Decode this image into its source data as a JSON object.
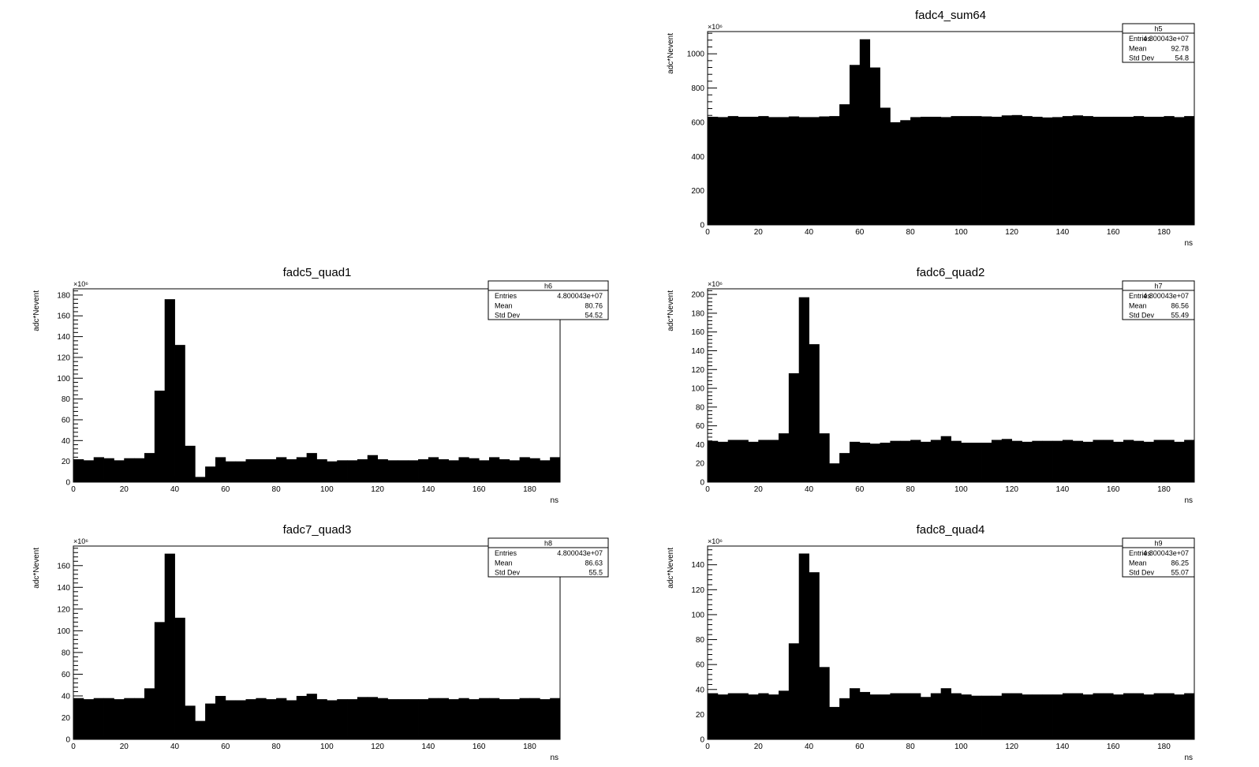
{
  "chart_data": [
    {
      "type": "bar",
      "title": "fadc4_sum64",
      "xlabel": "ns",
      "ylabel": "adc*Nevent",
      "y_multiplier": "×10⁶",
      "xlim": [
        0,
        192
      ],
      "ylim": [
        0,
        1130
      ],
      "xticks": [
        0,
        20,
        40,
        60,
        80,
        100,
        120,
        140,
        160,
        180
      ],
      "yticks": [
        0,
        200,
        400,
        600,
        800,
        1000
      ],
      "bin_width": 4,
      "values": [
        632,
        630,
        636,
        632,
        632,
        636,
        630,
        630,
        634,
        630,
        630,
        634,
        636,
        705,
        935,
        1085,
        920,
        685,
        600,
        612,
        630,
        632,
        632,
        630,
        636,
        636,
        636,
        634,
        632,
        640,
        642,
        636,
        632,
        628,
        630,
        636,
        640,
        636,
        632,
        632,
        632,
        632,
        636,
        632,
        632,
        636,
        630,
        636
      ],
      "stats": {
        "name": "h5",
        "rows": [
          [
            "Entries",
            "4.800043e+07"
          ],
          [
            "Mean",
            "92.78"
          ],
          [
            "Std Dev",
            "54.8"
          ]
        ]
      }
    },
    {
      "type": "bar",
      "title": "fadc5_quad1",
      "xlabel": "ns",
      "ylabel": "adc*Nevent",
      "y_multiplier": "×10⁶",
      "xlim": [
        0,
        192
      ],
      "ylim": [
        0,
        186
      ],
      "xticks": [
        0,
        20,
        40,
        60,
        80,
        100,
        120,
        140,
        160,
        180
      ],
      "yticks": [
        0,
        20,
        40,
        60,
        80,
        100,
        120,
        140,
        160,
        180
      ],
      "bin_width": 4,
      "values": [
        22,
        21,
        24,
        23,
        21,
        23,
        23,
        28,
        88,
        176,
        132,
        35,
        5,
        15,
        24,
        20,
        20,
        22,
        22,
        22,
        24,
        22,
        24,
        28,
        22,
        20,
        21,
        21,
        22,
        26,
        22,
        21,
        21,
        21,
        22,
        24,
        22,
        21,
        24,
        23,
        21,
        24,
        22,
        21,
        24,
        23,
        21,
        24
      ],
      "stats": {
        "name": "h6",
        "rows": [
          [
            "Entries",
            "4.800043e+07"
          ],
          [
            "Mean",
            "80.76"
          ],
          [
            "Std Dev",
            "54.52"
          ]
        ]
      }
    },
    {
      "type": "bar",
      "title": "fadc6_quad2",
      "xlabel": "ns",
      "ylabel": "adc*Nevent",
      "y_multiplier": "×10⁶",
      "xlim": [
        0,
        192
      ],
      "ylim": [
        0,
        206
      ],
      "xticks": [
        0,
        20,
        40,
        60,
        80,
        100,
        120,
        140,
        160,
        180
      ],
      "yticks": [
        0,
        20,
        40,
        60,
        80,
        100,
        120,
        140,
        160,
        180,
        200
      ],
      "bin_width": 4,
      "values": [
        44,
        43,
        45,
        45,
        43,
        45,
        45,
        52,
        116,
        197,
        147,
        52,
        20,
        31,
        43,
        42,
        41,
        42,
        44,
        44,
        45,
        43,
        45,
        49,
        44,
        42,
        42,
        42,
        45,
        46,
        44,
        43,
        44,
        44,
        44,
        45,
        44,
        43,
        45,
        45,
        43,
        45,
        44,
        43,
        45,
        45,
        43,
        45
      ],
      "stats": {
        "name": "h7",
        "rows": [
          [
            "Entries",
            "4.800043e+07"
          ],
          [
            "Mean",
            "86.56"
          ],
          [
            "Std Dev",
            "55.49"
          ]
        ]
      }
    },
    {
      "type": "bar",
      "title": "fadc7_quad3",
      "xlabel": "ns",
      "ylabel": "adc*Nevent",
      "y_multiplier": "×10⁶",
      "xlim": [
        0,
        192
      ],
      "ylim": [
        0,
        178
      ],
      "xticks": [
        0,
        20,
        40,
        60,
        80,
        100,
        120,
        140,
        160,
        180
      ],
      "yticks": [
        0,
        20,
        40,
        60,
        80,
        100,
        120,
        140,
        160
      ],
      "bin_width": 4,
      "values": [
        38,
        37,
        38,
        38,
        37,
        38,
        38,
        47,
        108,
        171,
        112,
        31,
        17,
        33,
        40,
        36,
        36,
        37,
        38,
        37,
        38,
        36,
        40,
        42,
        37,
        36,
        37,
        37,
        39,
        39,
        38,
        37,
        37,
        37,
        37,
        38,
        38,
        37,
        38,
        37,
        38,
        38,
        37,
        37,
        38,
        38,
        37,
        38
      ],
      "stats": {
        "name": "h8",
        "rows": [
          [
            "Entries",
            "4.800043e+07"
          ],
          [
            "Mean",
            "86.63"
          ],
          [
            "Std Dev",
            "55.5"
          ]
        ]
      }
    },
    {
      "type": "bar",
      "title": "fadc8_quad4",
      "xlabel": "ns",
      "ylabel": "adc*Nevent",
      "y_multiplier": "×10⁶",
      "xlim": [
        0,
        192
      ],
      "ylim": [
        0,
        155
      ],
      "xticks": [
        0,
        20,
        40,
        60,
        80,
        100,
        120,
        140,
        160,
        180
      ],
      "yticks": [
        0,
        20,
        40,
        60,
        80,
        100,
        120,
        140
      ],
      "bin_width": 4,
      "values": [
        37,
        36,
        37,
        37,
        36,
        37,
        36,
        39,
        77,
        149,
        134,
        58,
        26,
        33,
        41,
        38,
        36,
        36,
        37,
        37,
        37,
        34,
        37,
        41,
        37,
        36,
        35,
        35,
        35,
        37,
        37,
        36,
        36,
        36,
        36,
        37,
        37,
        36,
        37,
        37,
        36,
        37,
        37,
        36,
        37,
        37,
        36,
        37
      ],
      "stats": {
        "name": "h9",
        "rows": [
          [
            "Entries",
            "4.800043e+07"
          ],
          [
            "Mean",
            "86.25"
          ],
          [
            "Std Dev",
            "55.07"
          ]
        ]
      }
    }
  ],
  "colors": {
    "fill": "#000000",
    "frame": "#000000",
    "background": "#ffffff"
  }
}
